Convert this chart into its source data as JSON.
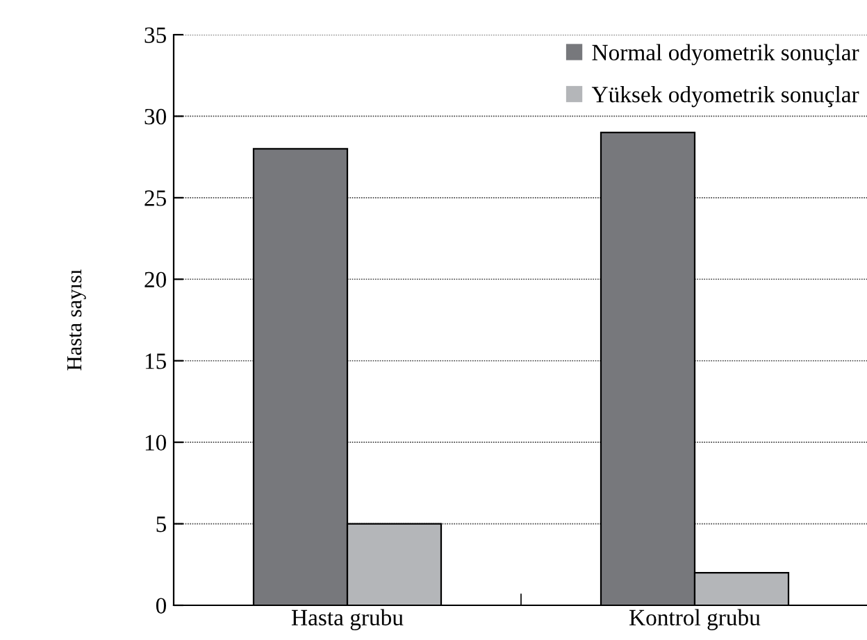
{
  "chart_data": {
    "type": "bar",
    "ylabel": "Hasta sayısı",
    "categories": [
      "Hasta grubu",
      "Kontrol grubu"
    ],
    "series": [
      {
        "name": "Normal odyometrik sonuçlar",
        "color": "#77787c",
        "values": [
          28,
          29
        ]
      },
      {
        "name": "Yüksek odyometrik sonuçlar",
        "color": "#b4b6b9",
        "values": [
          5,
          2
        ]
      }
    ],
    "ylim": [
      0,
      35
    ],
    "yticks": [
      0,
      5,
      10,
      15,
      20,
      25,
      30,
      35
    ],
    "grid": "y",
    "legend": "top right"
  }
}
